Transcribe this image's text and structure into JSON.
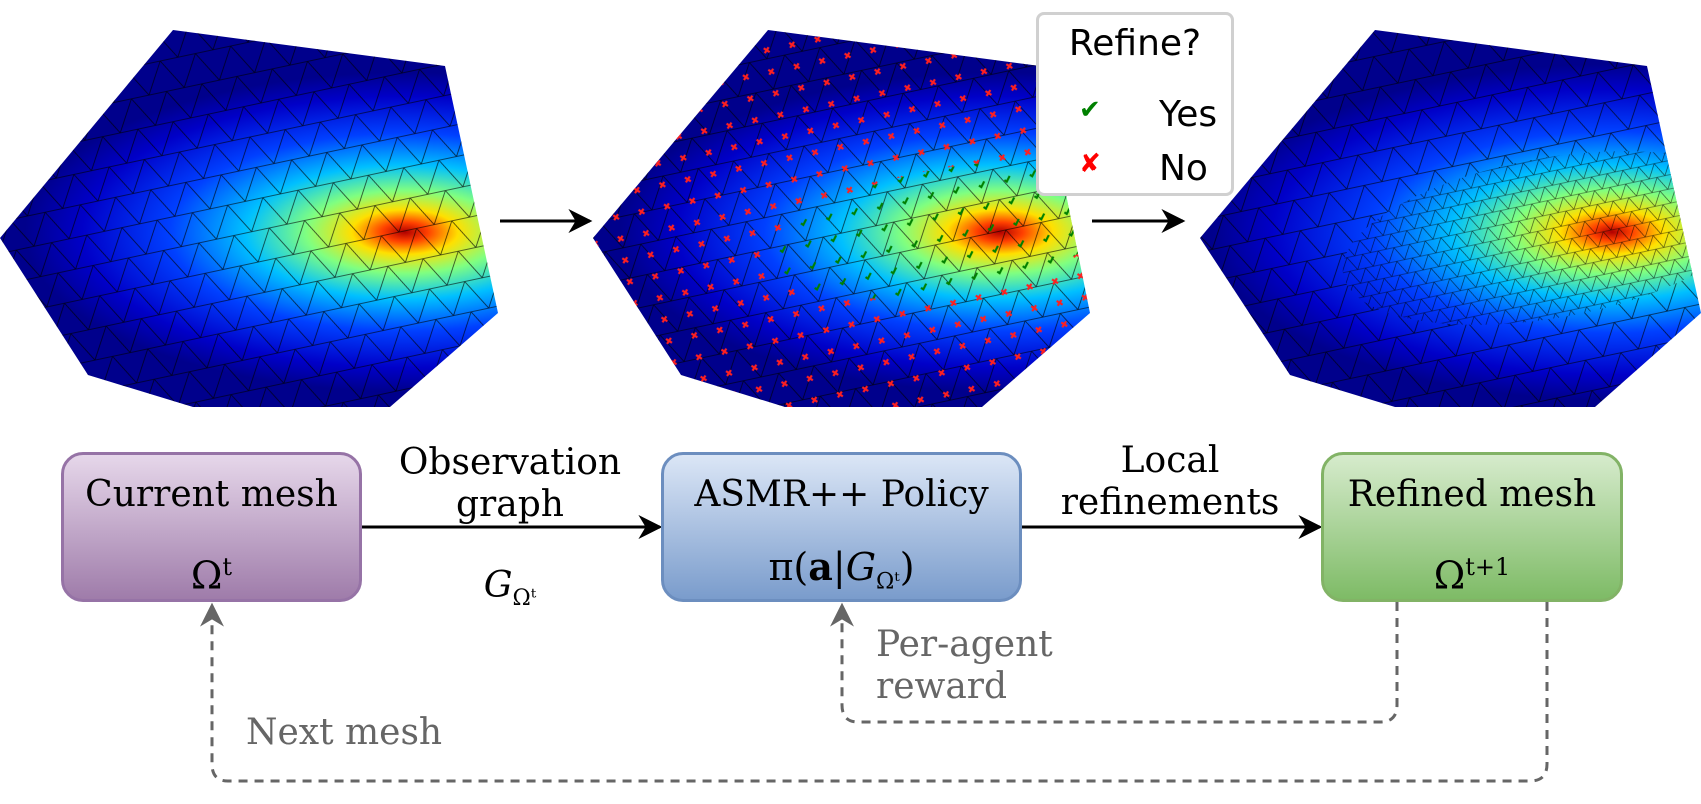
{
  "legend": {
    "title": "Refine?",
    "entries": [
      {
        "marker": "check-mark",
        "color": "#008000",
        "label": "Yes"
      },
      {
        "marker": "cross-mark",
        "color": "#ff0000",
        "label": "No"
      }
    ]
  },
  "nodes": {
    "current": {
      "title": "Current mesh",
      "symbol": "Ω",
      "sup": "t"
    },
    "policy": {
      "title": "ASMR++ Policy",
      "prefix": "π(",
      "bold": "a",
      "bar": "|",
      "cal": "G",
      "sub": "Ωᵗ",
      "suffix": ")"
    },
    "refined": {
      "title": "Refined mesh",
      "symbol": "Ω",
      "sup": "t+1"
    }
  },
  "edges": {
    "observation": {
      "line1": "Observation",
      "line2": "graph",
      "cal": "G",
      "sub": "Ωᵗ"
    },
    "local": {
      "line1": "Local",
      "line2": "refinements"
    },
    "reward": {
      "line1": "Per-agent",
      "line2": "reward"
    },
    "next": {
      "label": "Next mesh"
    }
  },
  "colors": {
    "current_fill": "#e1d5e7",
    "current_border": "#9673a6",
    "policy_fill": "#dae8fc",
    "policy_border": "#6c8ebf",
    "refined_fill": "#d5e8d4",
    "refined_border": "#82b366",
    "feedback": "#666666",
    "refine_yes": "#008000",
    "refine_no": "#ff0000"
  }
}
